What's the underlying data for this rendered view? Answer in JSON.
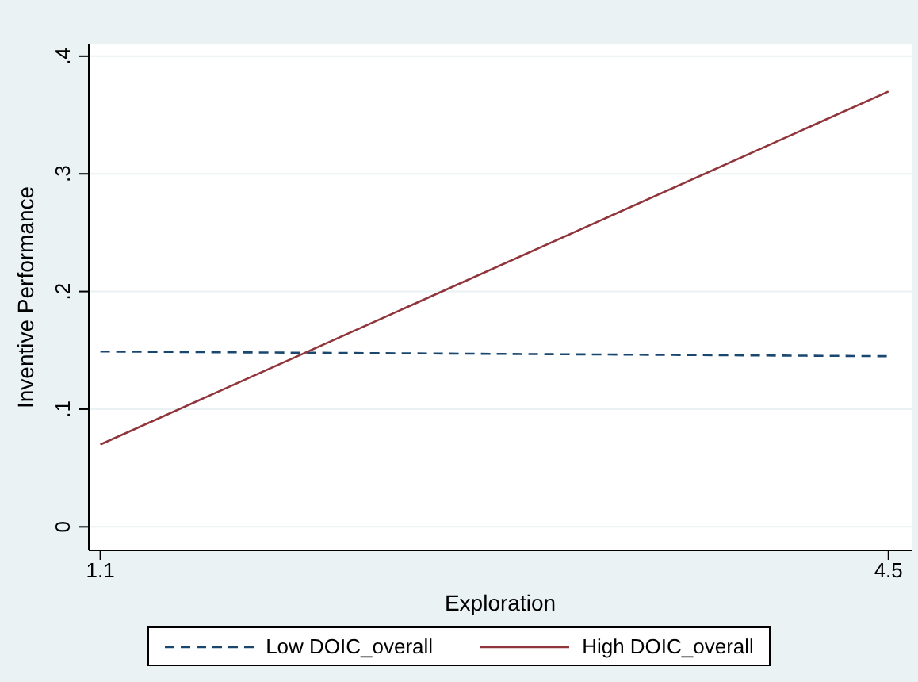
{
  "chart_data": {
    "type": "line",
    "xlabel": "Exploration",
    "ylabel": "Inventive Performance",
    "x": [
      1.1,
      4.5
    ],
    "series": [
      {
        "name": "Low DOIC_overall",
        "color": "#1a476f",
        "values": [
          0.149,
          0.145
        ],
        "line_style": "dashed"
      },
      {
        "name": "High DOIC_overall",
        "color": "#90353b",
        "values": [
          0.07,
          0.37
        ],
        "line_style": "solid"
      }
    ],
    "xlim": [
      1.05,
      4.6
    ],
    "xticks": [
      1.1,
      4.5
    ],
    "ylim": [
      -0.02,
      0.41
    ],
    "yticks": [
      0,
      {
        "value": 0.1,
        "label": ".1"
      },
      {
        "value": 0.2,
        "label": ".2"
      },
      {
        "value": 0.3,
        "label": ".3"
      },
      {
        "value": 0.4,
        "label": ".4"
      }
    ],
    "grid": "y",
    "legend": "bottom",
    "marker": "none"
  }
}
